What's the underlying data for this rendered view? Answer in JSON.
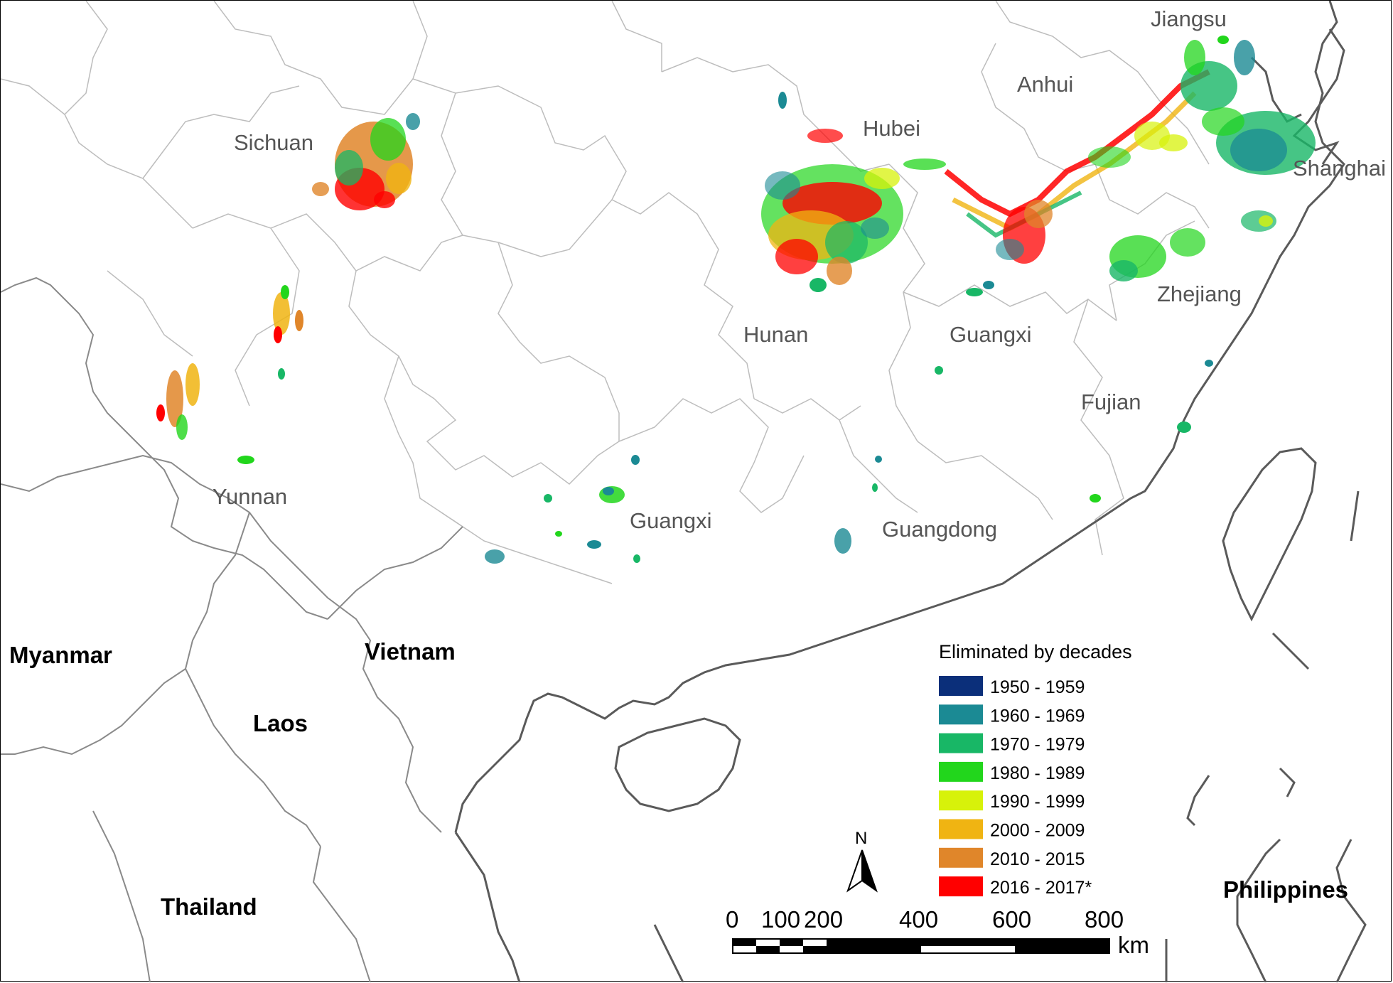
{
  "map": {
    "legend": {
      "title": "Eliminated by decades",
      "items": [
        {
          "label": "1950 - 1959",
          "color": "#0b2f7a"
        },
        {
          "label": "1960 - 1969",
          "color": "#1b8a94"
        },
        {
          "label": "1970 - 1979",
          "color": "#18b766"
        },
        {
          "label": "1980 - 1989",
          "color": "#22d61c"
        },
        {
          "label": "1990 - 1999",
          "color": "#d7f20a"
        },
        {
          "label": "2000 - 2009",
          "color": "#f0b412"
        },
        {
          "label": "2010 - 2015",
          "color": "#e0862a"
        },
        {
          "label": "2016 - 2017*",
          "color": "#ff0000"
        }
      ]
    },
    "province_labels": [
      "Jiangsu",
      "Anhui",
      "Hubei",
      "Shanghai",
      "Sichuan",
      "Hunan",
      "Guangxi",
      "Zhejiang",
      "Fujian",
      "Yunnan",
      "Guangxi",
      "Guangdong"
    ],
    "country_labels": [
      "Myanmar",
      "Vietnam",
      "Laos",
      "Thailand",
      "Philippines"
    ],
    "north_arrow": "N",
    "scale_bar": {
      "ticks": [
        "0",
        "100",
        "200",
        "400",
        "600",
        "800"
      ],
      "unit": "km"
    }
  }
}
